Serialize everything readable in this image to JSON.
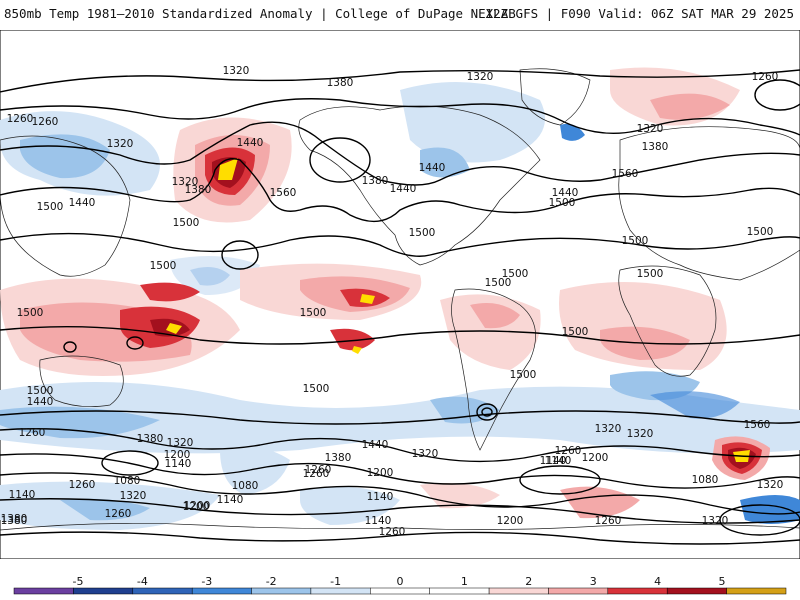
{
  "header": {
    "left_title": "850mb Temp 1981–2010 Standardized Anomaly | College of DuPage NEXLAB",
    "right_title": "12Z GFS | F090 Valid: 06Z SAT MAR 29 2025"
  },
  "map": {
    "projection": "global equirectangular",
    "contour_field": "850mb geopotential height",
    "contour_labels": [
      "1320",
      "1380",
      "1320",
      "1260",
      "1260",
      "1260",
      "1320",
      "1320",
      "1440",
      "1380",
      "1560",
      "1320",
      "1380",
      "1440",
      "1380",
      "1440",
      "1500",
      "1500",
      "1440",
      "1560",
      "1440",
      "1500",
      "1500",
      "1500",
      "1500",
      "1500",
      "1500",
      "1500",
      "1500",
      "1500",
      "1500",
      "1500",
      "1500",
      "1500",
      "1500",
      "1440",
      "1260",
      "1380",
      "1320",
      "1200",
      "1140",
      "1080",
      "1260",
      "1140",
      "1380",
      "1200",
      "1440",
      "1380",
      "1320",
      "1260",
      "1140",
      "1200",
      "1320",
      "1560",
      "1320",
      "1140",
      "1080",
      "1260",
      "1320",
      "1200",
      "1140",
      "1080",
      "1140",
      "1200",
      "1260",
      "1380",
      "1260",
      "1200",
      "1140",
      "1260",
      "1320",
      "1320",
      "1260"
    ],
    "colors": {
      "strong_warm": "#a3101e",
      "warm": "#d8323a",
      "mild_warm": "#f3a9a9",
      "slight_warm": "#f9d7d5",
      "slight_cold": "#d3e4f5",
      "mild_cold": "#9cc4ea",
      "cold": "#3f87d8",
      "extreme_warm": "#ffdd00",
      "contour": "#000000",
      "borders": "#000000"
    }
  },
  "colorbar": {
    "tick_labels": [
      "-5",
      "-4",
      "-3",
      "-2",
      "-1",
      "0",
      "1",
      "2",
      "3",
      "4",
      "5"
    ],
    "colors": [
      "#6b3fa0",
      "#1f3f8f",
      "#2f64b8",
      "#3f87d8",
      "#9cc4ea",
      "#d3e4f5",
      "#ffffff",
      "#ffffff",
      "#f9d7d5",
      "#f3a9a9",
      "#d8323a",
      "#a3101e",
      "#d4a017"
    ]
  }
}
